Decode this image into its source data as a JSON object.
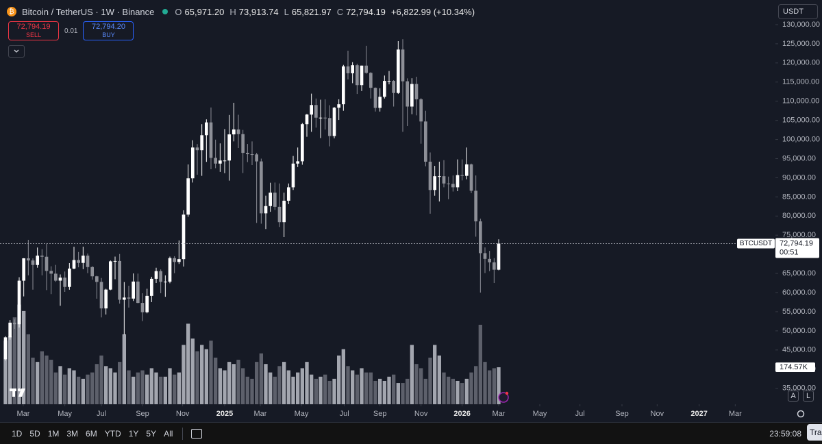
{
  "header": {
    "symbol": "Bitcoin / TetherUS · 1W · Binance",
    "open_label": "O",
    "open": "65,971.20",
    "high_label": "H",
    "high": "73,913.74",
    "low_label": "L",
    "low": "65,821.97",
    "close_label": "C",
    "close": "72,794.19",
    "change": "+6,822.99 (+10.34%)"
  },
  "trade": {
    "sell_price": "72,794.19",
    "sell": "SELL",
    "quantity": "0.01",
    "buy_price": "72,794.20",
    "buy": "BUY"
  },
  "currency": "USDT",
  "scale_buttons": [
    "A",
    "L"
  ],
  "toolbar": {
    "ranges": [
      "1D",
      "5D",
      "1M",
      "3M",
      "6M",
      "YTD",
      "1Y",
      "5Y",
      "All"
    ],
    "time": "23:59:08",
    "trade_button": "Tra"
  },
  "chart_data": {
    "type": "candlestick",
    "categories": [
      null,
      null,
      null,
      null,
      null,
      null,
      null,
      null,
      null,
      null,
      null,
      null,
      null,
      null,
      null,
      null,
      null,
      null,
      null,
      null,
      null,
      null,
      null,
      null,
      null,
      null,
      null,
      null,
      null,
      null,
      null,
      null,
      null,
      null,
      null,
      null,
      null,
      null,
      null,
      null,
      null,
      null,
      null,
      null,
      null,
      null,
      null,
      null,
      null,
      null,
      null,
      null,
      null,
      null,
      null,
      null,
      null,
      null,
      null,
      null,
      null,
      null,
      null,
      null,
      null,
      null,
      null,
      null,
      null,
      null,
      null,
      null,
      null,
      null,
      null,
      null,
      null,
      null,
      null,
      null,
      null,
      null,
      null,
      null,
      null,
      null,
      null,
      null,
      null,
      null,
      null,
      null,
      null,
      null,
      null,
      null,
      null,
      null,
      null,
      null,
      null,
      null,
      null,
      null,
      null,
      null,
      null,
      null,
      null
    ],
    "open": [
      42580,
      48300,
      52140,
      51730,
      63110,
      68950,
      68390,
      67210,
      69650,
      69360,
      65660,
      64940,
      63120,
      63900,
      61480,
      66270,
      68500,
      67750,
      69650,
      66670,
      64250,
      62780,
      55860,
      60780,
      68160,
      68250,
      58130,
      58700,
      58430,
      62880,
      57300,
      54870,
      59130,
      63600,
      65600,
      62800,
      62850,
      69000,
      68000,
      68740,
      80370,
      89850,
      97900,
      97200,
      101120,
      104460,
      95190,
      93700,
      94500,
      94500,
      101330,
      102620,
      101400,
      96500,
      96150,
      96100,
      94270,
      80700,
      82600,
      86100,
      82400,
      78400,
      84000,
      87500,
      93700,
      94300,
      104000,
      106500,
      109000,
      105700,
      105700,
      105600,
      100900,
      108300,
      109200,
      119100,
      117300,
      119400,
      114200,
      119300,
      117400,
      113500,
      108250,
      111150,
      115300,
      115300,
      112150,
      123500,
      115200,
      108600,
      114500,
      110500,
      104700,
      94200,
      86800,
      90400,
      90400,
      88500,
      88400,
      87500,
      90700,
      90500,
      93500,
      86600,
      78600,
      70300,
      68800,
      67900,
      65971.2
    ],
    "high": [
      48590,
      52820,
      52990,
      64000,
      69000,
      73780,
      68920,
      71770,
      71340,
      72800,
      66870,
      67230,
      64750,
      65500,
      67700,
      71980,
      70600,
      71990,
      70200,
      66900,
      64400,
      63800,
      61000,
      68380,
      69400,
      70080,
      62750,
      61800,
      65000,
      64960,
      59810,
      61000,
      64130,
      66500,
      66050,
      64500,
      69400,
      69500,
      73620,
      81500,
      93480,
      99800,
      98800,
      104000,
      105250,
      108350,
      99960,
      98980,
      102720,
      106400,
      109590,
      106450,
      102500,
      98830,
      99500,
      96500,
      95000,
      85300,
      88700,
      88750,
      88500,
      86100,
      88500,
      95700,
      97900,
      104300,
      106700,
      111980,
      110700,
      110400,
      110500,
      108950,
      108500,
      110500,
      119490,
      123200,
      120200,
      119800,
      119300,
      124470,
      117600,
      113600,
      113400,
      116700,
      117900,
      115500,
      125700,
      126200,
      115970,
      116000,
      116400,
      110800,
      107500,
      96600,
      93100,
      94200,
      94600,
      90300,
      90600,
      94800,
      94800,
      97900,
      93700,
      90600,
      79300,
      71800,
      70900,
      69000,
      73913.74
    ],
    "low": [
      42260,
      47700,
      50520,
      50900,
      59000,
      64500,
      60760,
      66500,
      64500,
      60660,
      59600,
      62790,
      56550,
      60180,
      60750,
      66080,
      66600,
      66120,
      65080,
      63370,
      58400,
      53500,
      54260,
      60630,
      63500,
      57120,
      49000,
      56080,
      57800,
      57200,
      52550,
      54580,
      57500,
      62500,
      59830,
      58900,
      62450,
      65060,
      67470,
      66800,
      79800,
      88750,
      90790,
      90500,
      94150,
      92230,
      92500,
      91530,
      91200,
      89250,
      99500,
      97780,
      91230,
      94090,
      93300,
      78200,
      78000,
      76600,
      81100,
      81600,
      77150,
      74500,
      83100,
      86800,
      92800,
      93400,
      100700,
      102000,
      103100,
      100370,
      102600,
      98200,
      100300,
      105100,
      107500,
      115700,
      114700,
      111900,
      112650,
      117200,
      110700,
      107300,
      107300,
      110700,
      114400,
      108600,
      111900,
      102000,
      103500,
      106600,
      106300,
      98900,
      93000,
      80600,
      85300,
      83800,
      87500,
      84400,
      86400,
      86500,
      89300,
      89600,
      86000,
      74600,
      60000,
      65100,
      65600,
      62500,
      65821.97
    ],
    "close": [
      48300,
      52140,
      51730,
      63110,
      68950,
      68390,
      67210,
      69650,
      69360,
      65660,
      64940,
      63120,
      63900,
      61480,
      66270,
      68500,
      67750,
      69650,
      66670,
      64250,
      62780,
      55860,
      60780,
      68160,
      68250,
      58130,
      58700,
      58430,
      62880,
      57300,
      54870,
      59130,
      63600,
      65600,
      62800,
      62850,
      69000,
      68000,
      68740,
      80370,
      89850,
      97900,
      97200,
      101120,
      104460,
      95190,
      93700,
      94500,
      94500,
      101330,
      102620,
      101400,
      96500,
      96150,
      96100,
      94270,
      80700,
      82600,
      86100,
      82400,
      78400,
      84000,
      87500,
      93700,
      94300,
      104000,
      106500,
      109000,
      105700,
      105700,
      105600,
      100900,
      108300,
      109200,
      119100,
      117300,
      119400,
      114200,
      119300,
      117400,
      113500,
      108250,
      111150,
      115300,
      115300,
      112150,
      123500,
      115200,
      108600,
      114500,
      110500,
      104700,
      94200,
      86800,
      90400,
      90400,
      88500,
      88400,
      87500,
      90700,
      90500,
      93500,
      86600,
      78600,
      70300,
      68800,
      67900,
      65971.2,
      72794.19
    ],
    "volume": [
      300,
      320,
      410,
      470,
      440,
      330,
      220,
      200,
      250,
      230,
      210,
      150,
      180,
      140,
      170,
      160,
      130,
      120,
      140,
      150,
      190,
      230,
      180,
      170,
      150,
      200,
      330,
      160,
      130,
      150,
      160,
      140,
      170,
      150,
      130,
      130,
      170,
      140,
      150,
      280,
      380,
      310,
      250,
      280,
      260,
      300,
      220,
      170,
      160,
      200,
      190,
      210,
      170,
      130,
      120,
      200,
      240,
      190,
      150,
      130,
      180,
      200,
      160,
      130,
      150,
      170,
      200,
      140,
      120,
      130,
      140,
      110,
      120,
      230,
      260,
      180,
      160,
      140,
      170,
      150,
      150,
      110,
      120,
      110,
      130,
      140,
      100,
      100,
      120,
      280,
      190,
      170,
      120,
      220,
      280,
      230,
      150,
      130,
      120,
      110,
      100,
      120,
      150,
      180,
      375,
      200,
      160,
      170,
      174.57
    ],
    "volume_label": "174.57K",
    "up_color": "#ffffff",
    "down_color": "#8d8f97",
    "up_volume_color": "#a3a6af",
    "down_volume_color": "#5d606b",
    "xlim": [
      -1.2,
      168.6
    ],
    "xticks": [
      {
        "value": 3.9,
        "label": "Mar"
      },
      {
        "value": 13,
        "label": "May"
      },
      {
        "value": 21,
        "label": "Jul"
      },
      {
        "value": 30,
        "label": "Sep"
      },
      {
        "value": 38.8,
        "label": "Nov"
      },
      {
        "value": 48,
        "label": "2025"
      },
      {
        "value": 55.8,
        "label": "Mar"
      },
      {
        "value": 64.8,
        "label": "May"
      },
      {
        "value": 74.2,
        "label": "Jul"
      },
      {
        "value": 82,
        "label": "Sep"
      },
      {
        "value": 91,
        "label": "Nov"
      },
      {
        "value": 100,
        "label": "2026"
      },
      {
        "value": 108,
        "label": "Mar"
      },
      {
        "value": 117,
        "label": "May"
      },
      {
        "value": 125.8,
        "label": "Jul"
      },
      {
        "value": 135,
        "label": "Sep"
      },
      {
        "value": 142.7,
        "label": "Nov"
      },
      {
        "value": 151.9,
        "label": "2027"
      },
      {
        "value": 159.8,
        "label": "Mar"
      }
    ],
    "ylim": [
      30820,
      131070
    ],
    "yticks": [
      {
        "value": 35000,
        "label": "35,000.00"
      },
      {
        "value": 40000,
        "label": "40,000.00"
      },
      {
        "value": 45000,
        "label": "45,000.00"
      },
      {
        "value": 50000,
        "label": "50,000.00"
      },
      {
        "value": 55000,
        "label": "55,000.00"
      },
      {
        "value": 60000,
        "label": "60,000.00"
      },
      {
        "value": 65000,
        "label": "65,000.00"
      },
      {
        "value": 70000,
        "label": "70,000.00"
      },
      {
        "value": 75000,
        "label": "75,000.00"
      },
      {
        "value": 80000,
        "label": "80,000.00"
      },
      {
        "value": 85000,
        "label": "85,000.00"
      },
      {
        "value": 90000,
        "label": "90,000.00"
      },
      {
        "value": 95000,
        "label": "95,000.00"
      },
      {
        "value": 100000,
        "label": "100,000.00"
      },
      {
        "value": 105000,
        "label": "105,000.00"
      },
      {
        "value": 110000,
        "label": "110,000.00"
      },
      {
        "value": 115000,
        "label": "115,000.00"
      },
      {
        "value": 120000,
        "label": "120,000.00"
      },
      {
        "value": 125000,
        "label": "125,000.00"
      },
      {
        "value": 130000,
        "label": "130,000.00"
      }
    ],
    "y2lim": [
      0,
      1810
    ],
    "price_tag": {
      "symbol": "BTCUSDT",
      "price": "72,794.19",
      "countdown": "00:51"
    }
  }
}
